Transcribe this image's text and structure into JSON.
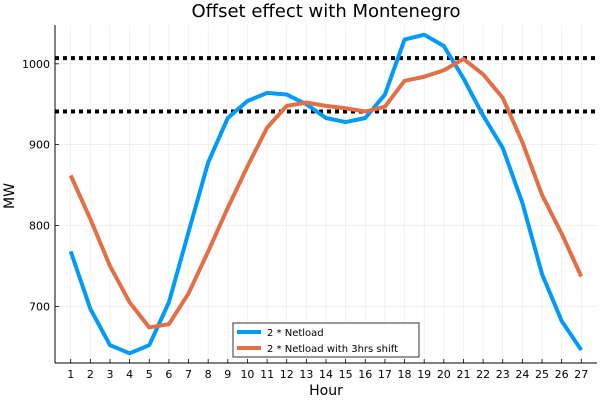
{
  "chart_data": {
    "type": "line",
    "title": "Offset effect with Montenegro",
    "xlabel": "Hour",
    "ylabel": "MW",
    "x": [
      1,
      2,
      3,
      4,
      5,
      6,
      7,
      8,
      9,
      10,
      11,
      12,
      13,
      14,
      15,
      16,
      17,
      18,
      19,
      20,
      21,
      22,
      23,
      24,
      25,
      26,
      27
    ],
    "xlim": [
      0.2,
      27.8
    ],
    "ylim": [
      630,
      1048
    ],
    "xticks": [
      1,
      2,
      3,
      4,
      5,
      6,
      7,
      8,
      9,
      10,
      11,
      12,
      13,
      14,
      15,
      16,
      17,
      18,
      19,
      20,
      21,
      22,
      23,
      24,
      25,
      26,
      27
    ],
    "yticks": [
      700,
      800,
      900,
      1000
    ],
    "grid": true,
    "legend_position": "bottom-center",
    "series": [
      {
        "name": "2 * Netload",
        "color": "#009af9",
        "values": [
          768,
          697,
          652,
          642,
          652,
          705,
          792,
          878,
          933,
          954,
          964,
          962,
          950,
          933,
          928,
          933,
          962,
          1030,
          1036,
          1022,
          982,
          936,
          896,
          828,
          740,
          682,
          646
        ]
      },
      {
        "name": "2 * Netload with 3hrs shift",
        "color": "#e26f46",
        "values": [
          862,
          808,
          750,
          705,
          674,
          678,
          716,
          768,
          822,
          873,
          921,
          948,
          952,
          948,
          945,
          941,
          947,
          979,
          984,
          992,
          1006,
          987,
          958,
          903,
          838,
          790,
          737
        ]
      }
    ],
    "reference_lines": [
      {
        "y": 1007,
        "style": "dotted",
        "color": "#000000"
      },
      {
        "y": 941,
        "style": "dotted",
        "color": "#000000"
      }
    ]
  }
}
